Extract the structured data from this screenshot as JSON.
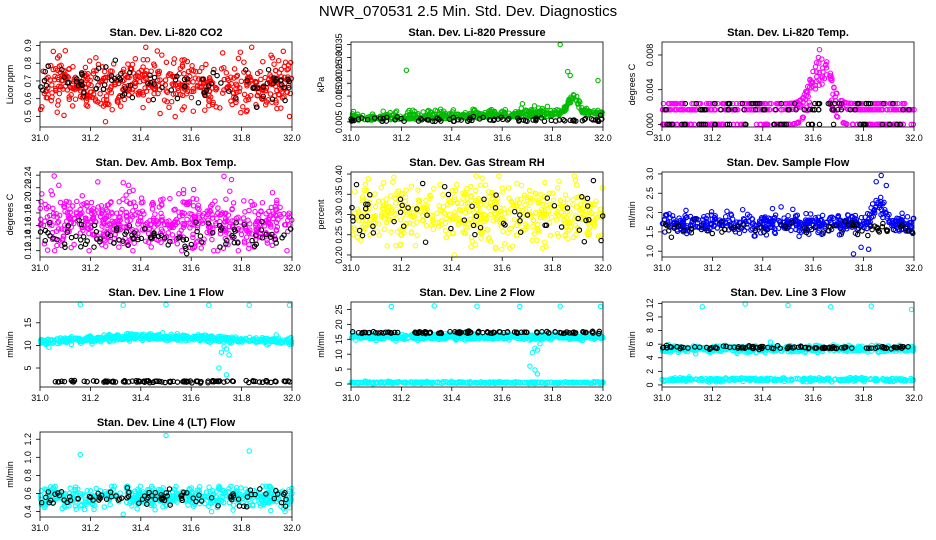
{
  "figure": {
    "title": "NWR_070531 2.5 Min. Std. Dev. Diagnostics"
  },
  "colors": {
    "red": "#ff0000",
    "green": "#00bb00",
    "magenta": "#ff00ff",
    "yellow": "#ffff00",
    "blue": "#0000ff",
    "cyan": "#00ffff",
    "black": "#000000"
  },
  "chart_data": [
    {
      "id": "co2",
      "type": "scatter",
      "title": "Stan. Dev. Li-820 CO2",
      "ylabel": "Licor ppm",
      "xlim": [
        31.0,
        32.0
      ],
      "ylim": [
        0.44,
        0.92
      ],
      "xticks": [
        "31.0",
        "31.2",
        "31.4",
        "31.6",
        "31.8",
        "32.0"
      ],
      "yticks": [
        "0.5",
        "0.6",
        "0.7",
        "0.8",
        "0.9"
      ],
      "ytick_values": [
        0.5,
        0.6,
        0.7,
        0.8,
        0.9
      ],
      "series": [
        {
          "name": "primary",
          "color": "red",
          "n": 520,
          "mean": 0.68,
          "sd": 0.07,
          "min": 0.47,
          "max": 0.9,
          "outliers": [
            [
              31.42,
              0.89
            ],
            [
              31.31,
              0.58
            ],
            [
              31.67,
              0.56
            ],
            [
              31.84,
              0.89
            ],
            [
              31.26,
              0.47
            ],
            [
              31.99,
              0.5
            ],
            [
              31.07,
              0.83
            ]
          ]
        },
        {
          "name": "secondary",
          "color": "black",
          "n": 90,
          "mean": 0.68,
          "sd": 0.06
        }
      ]
    },
    {
      "id": "pressure",
      "type": "scatter",
      "title": "Stan. Dev. Li-820 Pressure",
      "ylabel": "kPa",
      "xlim": [
        31.0,
        32.0
      ],
      "ylim": [
        0.003,
        0.036
      ],
      "xticks": [
        "31.0",
        "31.2",
        "31.4",
        "31.6",
        "31.8",
        "32.0"
      ],
      "yticks": [
        "0.005",
        "0.015",
        "0.020",
        "0.025",
        "0.030",
        "0.035"
      ],
      "ytick_values": [
        0.005,
        0.015,
        0.02,
        0.025,
        0.03,
        0.035
      ],
      "series": [
        {
          "name": "primary",
          "color": "green",
          "n": 480,
          "baseline": 0.0055,
          "slope": 0.002,
          "sd": 0.0013,
          "bump": {
            "x": 31.88,
            "height": 0.008,
            "width": 0.03
          },
          "outliers": [
            [
              31.22,
              0.025
            ],
            [
              31.83,
              0.035
            ],
            [
              31.86,
              0.0245
            ],
            [
              31.87,
              0.023
            ],
            [
              31.98,
              0.021
            ],
            [
              31.68,
              0.012
            ],
            [
              31.01,
              0.009
            ]
          ]
        },
        {
          "name": "secondary",
          "color": "black",
          "n": 85,
          "baseline": 0.0052,
          "sd": 0.0008
        }
      ]
    },
    {
      "id": "temp",
      "type": "scatter",
      "title": "Stan. Dev. Li-820 Temp.",
      "ylabel": "degrees C",
      "xlim": [
        31.0,
        32.0
      ],
      "ylim": [
        -0.0003,
        0.0095
      ],
      "xticks": [
        "31.0",
        "31.2",
        "31.4",
        "31.6",
        "31.8",
        "32.0"
      ],
      "yticks": [
        "0.000",
        "0.004",
        "0.008"
      ],
      "ytick_values": [
        0.0,
        0.004,
        0.008
      ],
      "series": [
        {
          "name": "primary",
          "color": "magenta",
          "n": 520,
          "levels": [
            0.0,
            0.0017,
            0.0024
          ],
          "bump": {
            "x": 31.63,
            "height": 0.0065,
            "width": 0.05
          }
        },
        {
          "name": "secondary",
          "color": "black",
          "n": 100,
          "levels": [
            0.0,
            0.0017,
            0.0024
          ]
        }
      ]
    },
    {
      "id": "boxtemp",
      "type": "scatter",
      "title": "Stan. Dev. Amb. Box Temp.",
      "ylabel": "degrees C",
      "xlim": [
        31.0,
        32.0
      ],
      "ylim": [
        0.11,
        0.245
      ],
      "xticks": [
        "31.0",
        "31.2",
        "31.4",
        "31.6",
        "31.8",
        "32.0"
      ],
      "yticks": [
        "0.12",
        "0.14",
        "0.16",
        "0.18",
        "0.20",
        "0.22",
        "0.24"
      ],
      "ytick_values": [
        0.12,
        0.14,
        0.16,
        0.18,
        0.2,
        0.22,
        0.24
      ],
      "series": [
        {
          "name": "primary",
          "color": "magenta",
          "n": 560,
          "mean": 0.165,
          "sd": 0.022,
          "min": 0.12,
          "max": 0.24,
          "outliers": [
            [
              31.73,
              0.238
            ],
            [
              31.76,
              0.233
            ],
            [
              31.33,
              0.228
            ],
            [
              31.98,
              0.12
            ],
            [
              31.03,
              0.121
            ]
          ]
        },
        {
          "name": "secondary",
          "color": "black",
          "n": 100,
          "mean": 0.142,
          "sd": 0.012
        }
      ]
    },
    {
      "id": "rh",
      "type": "scatter",
      "title": "Stan. Dev. Gas Stream RH",
      "ylabel": "percent",
      "xlim": [
        31.0,
        32.0
      ],
      "ylim": [
        0.195,
        0.405
      ],
      "xticks": [
        "31.0",
        "31.2",
        "31.4",
        "31.6",
        "31.8",
        "32.0"
      ],
      "yticks": [
        "0.20",
        "0.25",
        "0.30",
        "0.35",
        "0.40"
      ],
      "ytick_values": [
        0.2,
        0.25,
        0.3,
        0.35,
        0.4
      ],
      "series": [
        {
          "name": "primary",
          "color": "yellow",
          "n": 520,
          "mean": 0.3,
          "sd": 0.035,
          "min": 0.21,
          "max": 0.395,
          "outliers": [
            [
              31.41,
              0.2
            ],
            [
              31.17,
              0.392
            ],
            [
              31.52,
              0.39
            ]
          ]
        },
        {
          "name": "secondary",
          "color": "black",
          "n": 60,
          "mean": 0.305,
          "sd": 0.03
        }
      ]
    },
    {
      "id": "sampleflow",
      "type": "scatter",
      "title": "Stan. Dev. Sample Flow",
      "ylabel": "ml/min",
      "xlim": [
        31.0,
        32.0
      ],
      "ylim": [
        0.85,
        3.05
      ],
      "xticks": [
        "31.0",
        "31.2",
        "31.4",
        "31.6",
        "31.8",
        "32.0"
      ],
      "yticks": [
        "1.0",
        "1.5",
        "2.0",
        "2.5",
        "3.0"
      ],
      "ytick_values": [
        1.0,
        1.5,
        2.0,
        2.5,
        3.0
      ],
      "series": [
        {
          "name": "primary",
          "color": "blue",
          "n": 480,
          "mean": 1.72,
          "sd": 0.13,
          "bump": {
            "x": 31.86,
            "height": 0.6,
            "width": 0.03
          },
          "outliers": [
            [
              31.87,
              2.96
            ],
            [
              31.85,
              2.8
            ],
            [
              31.89,
              2.7
            ],
            [
              31.82,
              1.05
            ],
            [
              31.79,
              1.1
            ],
            [
              31.76,
              0.93
            ]
          ]
        },
        {
          "name": "secondary",
          "color": "black",
          "n": 70,
          "mean": 1.6,
          "sd": 0.1
        }
      ]
    },
    {
      "id": "line1",
      "type": "scatter",
      "title": "Stan. Dev. Line 1 Flow",
      "ylabel": "ml/min",
      "xlim": [
        31.0,
        32.0
      ],
      "ylim": [
        0.8,
        19.6
      ],
      "xticks": [
        "31.0",
        "31.2",
        "31.4",
        "31.6",
        "31.8",
        "32.0"
      ],
      "yticks": [
        "5",
        "10",
        "15"
      ],
      "ytick_values": [
        5,
        10,
        15
      ],
      "series": [
        {
          "name": "primary",
          "color": "cyan",
          "n": 520,
          "start": 10.7,
          "peak": 12.0,
          "end": 10.9,
          "sd": 0.35,
          "outliers": [
            [
              31.16,
              19.0
            ],
            [
              31.33,
              18.9
            ],
            [
              31.5,
              19.0
            ],
            [
              31.67,
              18.9
            ],
            [
              31.83,
              18.9
            ],
            [
              31.99,
              18.9
            ],
            [
              31.73,
              9.8
            ],
            [
              31.74,
              9.2
            ],
            [
              31.72,
              8.5
            ],
            [
              31.71,
              5.0
            ],
            [
              31.74,
              3.5
            ],
            [
              31.75,
              7.9
            ],
            [
              31.76,
              10.5
            ]
          ]
        },
        {
          "name": "secondary",
          "color": "black",
          "n": 110,
          "mean": 2.0,
          "sd": 0.12
        }
      ]
    },
    {
      "id": "line2",
      "type": "scatter",
      "title": "Stan. Dev. Line 2 Flow",
      "ylabel": "ml/min",
      "xlim": [
        31.0,
        32.0
      ],
      "ylim": [
        -1.0,
        27.5
      ],
      "xticks": [
        "31.0",
        "31.2",
        "31.4",
        "31.6",
        "31.8",
        "32.0"
      ],
      "yticks": [
        "0",
        "5",
        "10",
        "15",
        "20",
        "25"
      ],
      "ytick_values": [
        0,
        5,
        10,
        15,
        20,
        25
      ],
      "series": [
        {
          "name": "primary",
          "color": "cyan",
          "n": 520,
          "mean": 15.8,
          "sd": 0.45,
          "outliers": [
            [
              31.16,
              26.0
            ],
            [
              31.33,
              26.2
            ],
            [
              31.5,
              26.1
            ],
            [
              31.67,
              26.0
            ],
            [
              31.83,
              26.1
            ],
            [
              31.99,
              26.0
            ],
            [
              31.72,
              10.5
            ],
            [
              31.73,
              12.0
            ],
            [
              31.75,
              13.5
            ],
            [
              31.74,
              11.4
            ],
            [
              31.71,
              6.0
            ],
            [
              31.73,
              4.7
            ],
            [
              31.74,
              3.4
            ]
          ]
        },
        {
          "name": "secondary",
          "color": "black",
          "n": 110,
          "mean": 17.3,
          "sd": 0.2
        },
        {
          "name": "baseline",
          "color": "cyan",
          "n": 300,
          "mean": 0.5,
          "sd": 0.15
        }
      ]
    },
    {
      "id": "line3",
      "type": "scatter",
      "title": "Stan. Dev. Line 3 Flow",
      "ylabel": "ml/min",
      "xlim": [
        31.0,
        32.0
      ],
      "ylim": [
        -0.3,
        12.2
      ],
      "xticks": [
        "31.0",
        "31.2",
        "31.4",
        "31.6",
        "31.8",
        "32.0"
      ],
      "yticks": [
        "0",
        "2",
        "4",
        "6",
        "8",
        "10",
        "12"
      ],
      "ytick_values": [
        0,
        2,
        4,
        6,
        8,
        10,
        12
      ],
      "series": [
        {
          "name": "primary",
          "color": "cyan",
          "n": 520,
          "mean": 5.3,
          "sd": 0.22,
          "outliers": [
            [
              31.16,
              11.5
            ],
            [
              31.33,
              11.9
            ],
            [
              31.5,
              11.7
            ],
            [
              31.67,
              11.5
            ],
            [
              31.83,
              11.6
            ],
            [
              31.99,
              11.1
            ],
            [
              31.43,
              6.3
            ]
          ]
        },
        {
          "name": "secondary",
          "color": "black",
          "n": 110,
          "mean": 5.5,
          "sd": 0.12
        },
        {
          "name": "baseline",
          "color": "cyan",
          "n": 300,
          "mean": 0.8,
          "sd": 0.12
        }
      ]
    },
    {
      "id": "line4",
      "type": "scatter",
      "title": "Stan. Dev. Line 4 (LT) Flow",
      "ylabel": "ml/min",
      "xlim": [
        31.0,
        32.0
      ],
      "ylim": [
        0.34,
        1.28
      ],
      "xticks": [
        "31.0",
        "31.2",
        "31.4",
        "31.6",
        "31.8",
        "32.0"
      ],
      "yticks": [
        "0.4",
        "0.6",
        "0.8",
        "1.0",
        "1.2"
      ],
      "ytick_values": [
        0.4,
        0.6,
        0.8,
        1.0,
        1.2
      ],
      "series": [
        {
          "name": "primary",
          "color": "cyan",
          "n": 480,
          "mean": 0.56,
          "sd": 0.06,
          "min": 0.4,
          "max": 0.68,
          "outliers": [
            [
              31.16,
              1.03
            ],
            [
              31.5,
              1.24
            ],
            [
              31.83,
              1.07
            ],
            [
              31.12,
              0.66
            ],
            [
              31.33,
              0.37
            ]
          ]
        },
        {
          "name": "secondary",
          "color": "black",
          "n": 90,
          "mean": 0.56,
          "sd": 0.05
        }
      ]
    }
  ]
}
